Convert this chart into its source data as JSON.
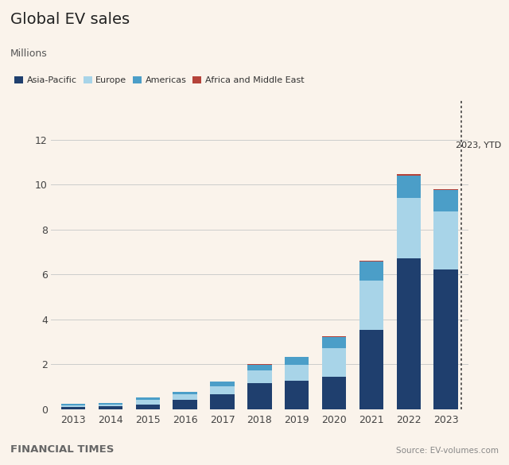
{
  "years": [
    2013,
    2014,
    2015,
    2016,
    2017,
    2018,
    2019,
    2020,
    2021,
    2022,
    2023
  ],
  "asia_pacific": [
    0.1,
    0.14,
    0.21,
    0.4,
    0.65,
    1.17,
    1.25,
    1.43,
    3.52,
    6.7,
    6.2
  ],
  "europe": [
    0.07,
    0.08,
    0.22,
    0.25,
    0.38,
    0.55,
    0.72,
    1.3,
    2.22,
    2.7,
    2.6
  ],
  "americas": [
    0.06,
    0.07,
    0.1,
    0.12,
    0.2,
    0.27,
    0.34,
    0.49,
    0.82,
    1.0,
    0.95
  ],
  "africa_me": [
    0.0,
    0.0,
    0.0,
    0.0,
    0.01,
    0.01,
    0.01,
    0.02,
    0.04,
    0.07,
    0.05
  ],
  "colors": {
    "asia_pacific": "#1f3f6e",
    "europe": "#a8d4e8",
    "americas": "#4b9ec8",
    "africa_me": "#b5433a"
  },
  "legend_labels": [
    "Asia-Pacific",
    "Europe",
    "Americas",
    "Africa and Middle East"
  ],
  "title": "Global EV sales",
  "subtitle": "Millions",
  "ytd_label": "2023, YTD",
  "source": "Source: EV-volumes.com",
  "footer": "FINANCIAL TIMES",
  "ylim": [
    0,
    12
  ],
  "yticks": [
    0,
    2,
    4,
    6,
    8,
    10,
    12
  ],
  "background_color": "#faf3eb"
}
